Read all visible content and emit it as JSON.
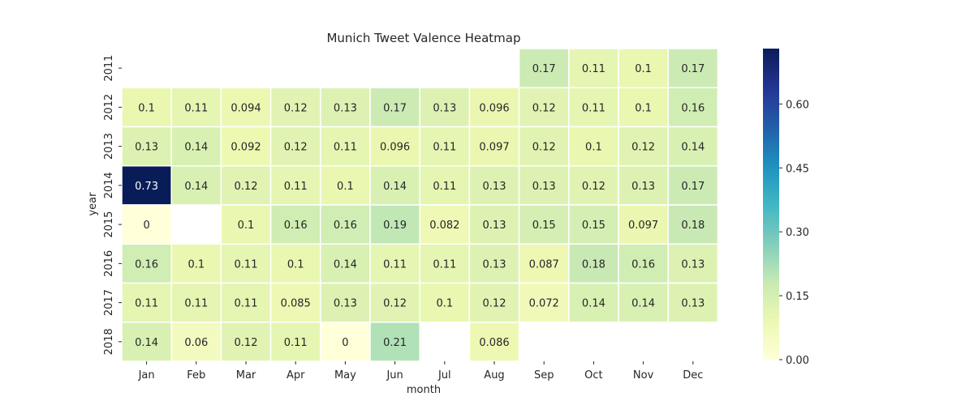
{
  "chart_data": {
    "type": "heatmap",
    "title": "Munich Tweet Valence Heatmap",
    "xlabel": "month",
    "ylabel": "year",
    "x_categories": [
      "Jan",
      "Feb",
      "Mar",
      "Apr",
      "May",
      "Jun",
      "Jul",
      "Aug",
      "Sep",
      "Oct",
      "Nov",
      "Dec"
    ],
    "y_categories": [
      "2011",
      "2012",
      "2013",
      "2014",
      "2015",
      "2016",
      "2017",
      "2018"
    ],
    "values": [
      [
        null,
        null,
        null,
        null,
        null,
        null,
        null,
        null,
        0.17,
        0.11,
        0.1,
        0.17
      ],
      [
        0.1,
        0.11,
        0.094,
        0.12,
        0.13,
        0.17,
        0.13,
        0.096,
        0.12,
        0.11,
        0.1,
        0.16
      ],
      [
        0.13,
        0.14,
        0.092,
        0.12,
        0.11,
        0.096,
        0.11,
        0.097,
        0.12,
        0.1,
        0.12,
        0.14
      ],
      [
        0.73,
        0.14,
        0.12,
        0.11,
        0.1,
        0.14,
        0.11,
        0.13,
        0.13,
        0.12,
        0.13,
        0.17
      ],
      [
        0,
        null,
        0.1,
        0.16,
        0.16,
        0.19,
        0.082,
        0.13,
        0.15,
        0.15,
        0.097,
        0.18
      ],
      [
        0.16,
        0.1,
        0.11,
        0.1,
        0.14,
        0.11,
        0.11,
        0.13,
        0.087,
        0.18,
        0.16,
        0.13
      ],
      [
        0.11,
        0.11,
        0.11,
        0.085,
        0.13,
        0.12,
        0.1,
        0.12,
        0.072,
        0.14,
        0.14,
        0.13
      ],
      [
        0.14,
        0.06,
        0.12,
        0.11,
        0,
        0.21,
        null,
        0.086,
        null,
        null,
        null,
        null
      ]
    ],
    "colorbar": {
      "colormap": "YlGnBu",
      "range": [
        0,
        0.73
      ],
      "ticks": [
        0,
        0.15,
        0.3,
        0.45,
        0.6
      ],
      "tick_labels": [
        "0.00",
        "0.15",
        "0.30",
        "0.45",
        "0.60"
      ]
    },
    "grid": false,
    "annotated": true
  }
}
